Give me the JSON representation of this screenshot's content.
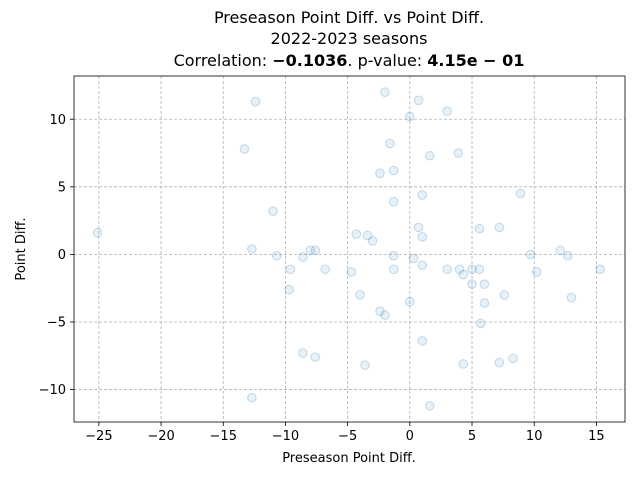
{
  "chart_data": {
    "type": "scatter",
    "title_line1": "Preseason Point Diff. vs Point Diff.",
    "title_line2": "2022-2023 seasons",
    "title_line3_prefix": "Correlation: ",
    "correlation_value": "−0.1036",
    "title_line3_mid": ". p-value: ",
    "p_value": "4.15e − 01",
    "xlabel": "Preseason Point Diff.",
    "ylabel": "Point Diff.",
    "xlim": [
      -27,
      17.3
    ],
    "ylim": [
      -12.4,
      13.2
    ],
    "xticks": [
      -25,
      -20,
      -15,
      -10,
      -5,
      0,
      5,
      10,
      15
    ],
    "yticks": [
      -10,
      -5,
      0,
      5,
      10
    ],
    "xtick_labels": [
      "−25",
      "−20",
      "−15",
      "−10",
      "−5",
      "0",
      "5",
      "10",
      "15"
    ],
    "ytick_labels": [
      "−10",
      "−5",
      "0",
      "5",
      "10"
    ],
    "grid": true,
    "points": [
      {
        "x": -25.1,
        "y": 1.6
      },
      {
        "x": -13.3,
        "y": 7.8
      },
      {
        "x": -12.4,
        "y": 11.3
      },
      {
        "x": -12.7,
        "y": 0.4
      },
      {
        "x": -12.7,
        "y": -10.6
      },
      {
        "x": -11.0,
        "y": 3.2
      },
      {
        "x": -10.7,
        "y": -0.1
      },
      {
        "x": -9.6,
        "y": -1.1
      },
      {
        "x": -9.7,
        "y": -2.6
      },
      {
        "x": -8.6,
        "y": -0.2
      },
      {
        "x": -8.6,
        "y": -7.3
      },
      {
        "x": -8.0,
        "y": 0.3
      },
      {
        "x": -7.6,
        "y": 0.3
      },
      {
        "x": -7.6,
        "y": -7.6
      },
      {
        "x": -6.8,
        "y": -1.1
      },
      {
        "x": -4.7,
        "y": -1.3
      },
      {
        "x": -4.3,
        "y": 1.5
      },
      {
        "x": -4.0,
        "y": -3.0
      },
      {
        "x": -3.6,
        "y": -8.2
      },
      {
        "x": -3.4,
        "y": 1.4
      },
      {
        "x": -3.0,
        "y": 1.0
      },
      {
        "x": -2.4,
        "y": 6.0
      },
      {
        "x": -2.4,
        "y": -4.2
      },
      {
        "x": -2.0,
        "y": 12.0
      },
      {
        "x": -2.0,
        "y": -4.5
      },
      {
        "x": -1.6,
        "y": 8.2
      },
      {
        "x": -1.3,
        "y": 6.2
      },
      {
        "x": -1.3,
        "y": 3.9
      },
      {
        "x": -1.3,
        "y": -0.1
      },
      {
        "x": -1.3,
        "y": -1.1
      },
      {
        "x": 0.0,
        "y": 10.2
      },
      {
        "x": 0.0,
        "y": -3.5
      },
      {
        "x": 0.3,
        "y": -0.3
      },
      {
        "x": 0.7,
        "y": 11.4
      },
      {
        "x": 0.7,
        "y": 2.0
      },
      {
        "x": 1.0,
        "y": 4.4
      },
      {
        "x": 1.0,
        "y": 1.3
      },
      {
        "x": 1.0,
        "y": -0.8
      },
      {
        "x": 1.0,
        "y": -6.4
      },
      {
        "x": 1.6,
        "y": 7.3
      },
      {
        "x": 1.6,
        "y": -11.2
      },
      {
        "x": 3.0,
        "y": 10.6
      },
      {
        "x": 3.0,
        "y": -1.1
      },
      {
        "x": 3.9,
        "y": 7.5
      },
      {
        "x": 4.0,
        "y": -1.1
      },
      {
        "x": 4.3,
        "y": -1.5
      },
      {
        "x": 4.3,
        "y": -8.1
      },
      {
        "x": 5.0,
        "y": -1.1
      },
      {
        "x": 5.0,
        "y": -2.2
      },
      {
        "x": 5.6,
        "y": 1.9
      },
      {
        "x": 5.6,
        "y": -1.1
      },
      {
        "x": 5.7,
        "y": -5.1
      },
      {
        "x": 6.0,
        "y": -2.2
      },
      {
        "x": 6.0,
        "y": -3.6
      },
      {
        "x": 7.2,
        "y": 2.0
      },
      {
        "x": 7.2,
        "y": -8.0
      },
      {
        "x": 7.6,
        "y": -3.0
      },
      {
        "x": 8.3,
        "y": -7.7
      },
      {
        "x": 8.9,
        "y": 4.5
      },
      {
        "x": 9.7,
        "y": 0.0
      },
      {
        "x": 10.2,
        "y": -1.3
      },
      {
        "x": 12.1,
        "y": 0.3
      },
      {
        "x": 12.7,
        "y": -0.1
      },
      {
        "x": 13.0,
        "y": -3.2
      },
      {
        "x": 15.3,
        "y": -1.1
      }
    ]
  }
}
